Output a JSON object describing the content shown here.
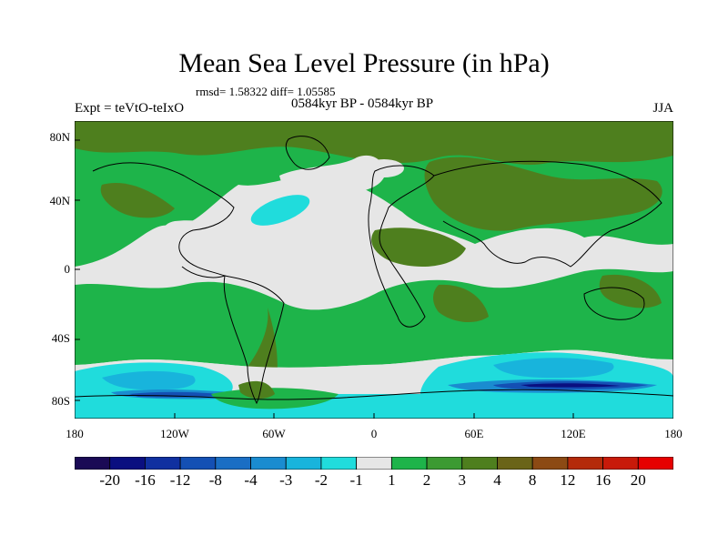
{
  "title": "Mean Sea Level Pressure (in hPa)",
  "stats": "rmsd= 1.58322 diff= 1.05585",
  "experiment": "Expt = teVtO-teIxO",
  "period": "0584kyr BP - 0584kyr BP",
  "season": "JJA",
  "lat_labels": [
    "80N",
    "40N",
    "0",
    "40S",
    "80S"
  ],
  "lon_labels": [
    "180",
    "120W",
    "60W",
    "0",
    "60E",
    "120E",
    "180"
  ],
  "colorbar": {
    "labels": [
      "-20",
      "-16",
      "-12",
      "-8",
      "-4",
      "-3",
      "-2",
      "-1",
      "1",
      "2",
      "3",
      "4",
      "8",
      "12",
      "16",
      "20"
    ],
    "colors": [
      "#1a0a55",
      "#0a0f80",
      "#1030a0",
      "#1450b4",
      "#1a6ec4",
      "#1a8cd0",
      "#18b4dc",
      "#20dcdc",
      "#e6e6e6",
      "#1eb44a",
      "#3c9a32",
      "#4e7f1e",
      "#6a6418",
      "#8c4a14",
      "#b42a0a",
      "#c81a0a",
      "#e60000"
    ]
  },
  "palette": {
    "ocean_neutral": "#e6e6e6",
    "green_light": "#1eb44a",
    "green_mid": "#3c9a32",
    "olive": "#4e7f1e",
    "brown": "#6a6418",
    "cyan": "#20dcdc",
    "blue_light": "#18b4dc",
    "blue_mid": "#1a8cd0",
    "blue_dark": "#1450b4",
    "navy": "#0a0f80"
  }
}
